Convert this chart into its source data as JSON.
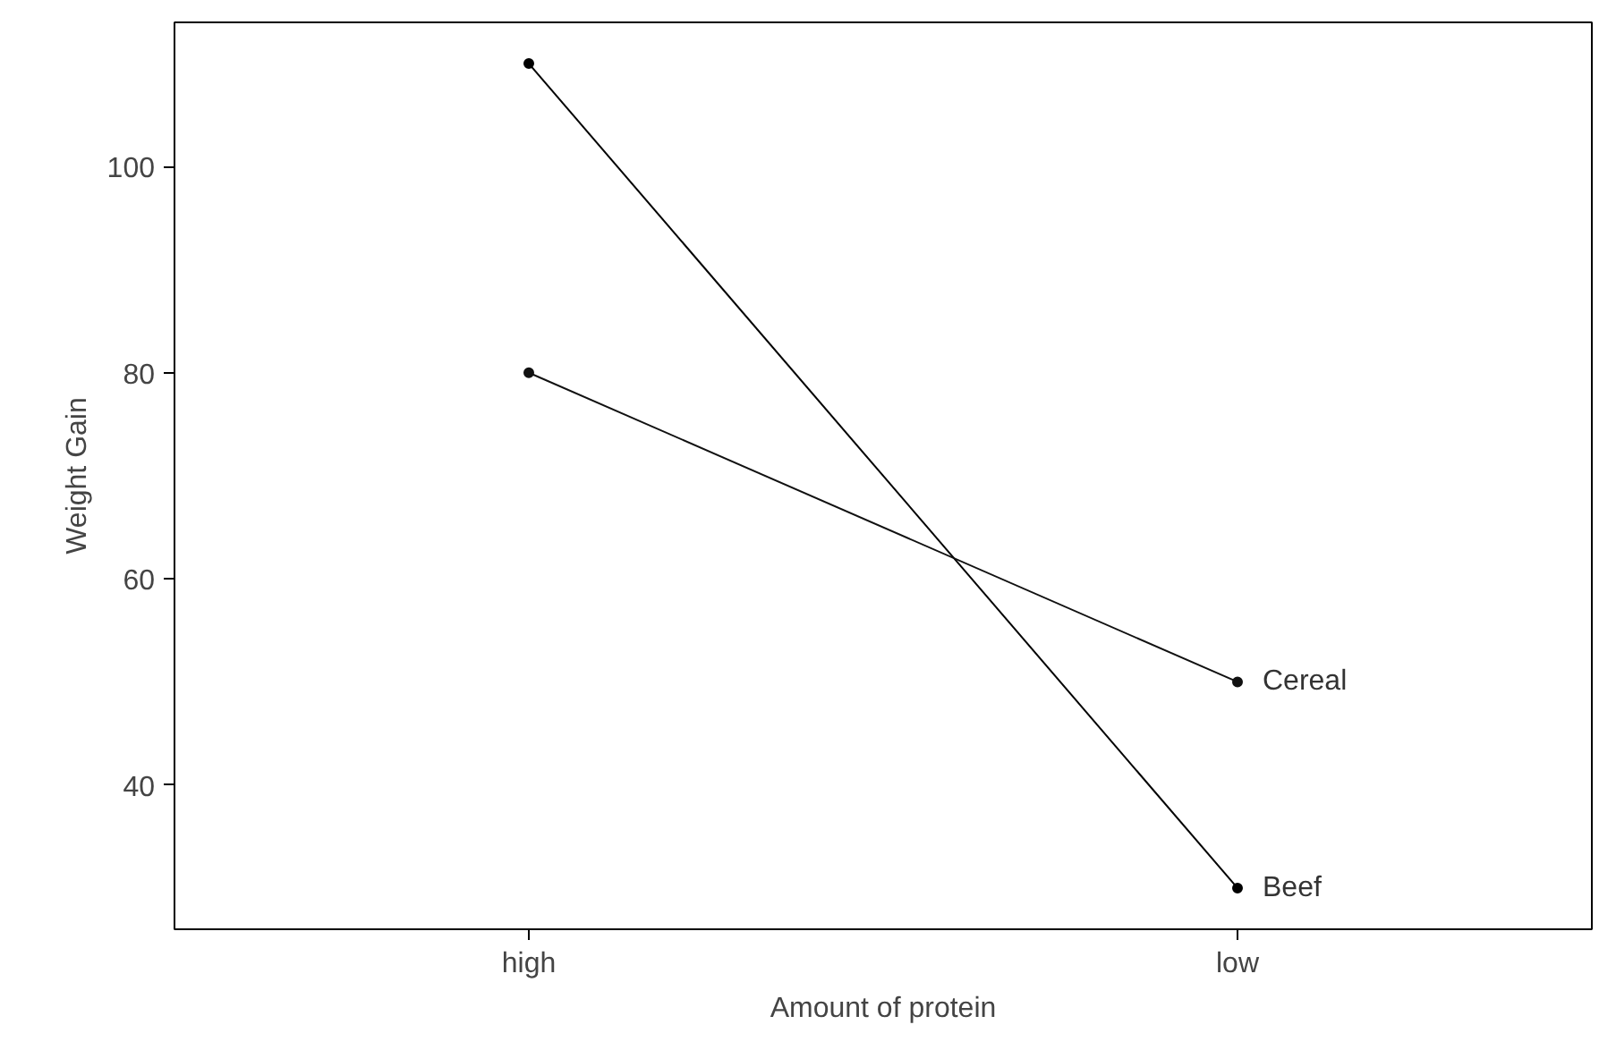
{
  "chart_data": {
    "type": "line",
    "xlabel": "Amount of protein",
    "ylabel": "Weight Gain",
    "categories": [
      "high",
      "low"
    ],
    "series": [
      {
        "name": "Beef",
        "color": "#000000",
        "values": [
          110,
          30
        ]
      },
      {
        "name": "Cereal",
        "color": "#111111",
        "values": [
          80,
          50
        ]
      }
    ],
    "ylim": [
      26,
      114
    ],
    "yticks": [
      40,
      60,
      80,
      100
    ],
    "grid": false,
    "legend": "right",
    "marker": "circle",
    "line_style": "solid"
  }
}
